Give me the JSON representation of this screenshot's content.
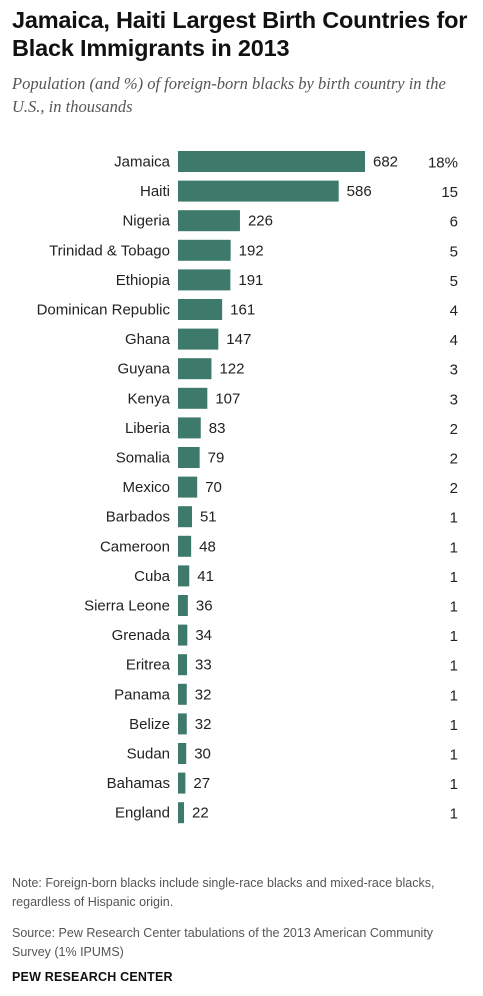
{
  "header": {
    "title": "Jamaica, Haiti Largest Birth Countries for Black Immigrants in 2013",
    "subtitle": "Population (and %) of foreign-born blacks by birth country in the U.S., in thousands"
  },
  "chart_data": {
    "type": "bar",
    "orientation": "horizontal",
    "categories": [
      "Jamaica",
      "Haiti",
      "Nigeria",
      "Trinidad & Tobago",
      "Ethiopia",
      "Dominican Republic",
      "Ghana",
      "Guyana",
      "Kenya",
      "Liberia",
      "Somalia",
      "Mexico",
      "Barbados",
      "Cameroon",
      "Cuba",
      "Sierra Leone",
      "Grenada",
      "Eritrea",
      "Panama",
      "Belize",
      "Sudan",
      "Bahamas",
      "England"
    ],
    "values": [
      682,
      586,
      226,
      192,
      191,
      161,
      147,
      122,
      107,
      83,
      79,
      70,
      51,
      48,
      41,
      36,
      34,
      33,
      32,
      32,
      30,
      27,
      22
    ],
    "percent_labels": [
      "18%",
      "15",
      "6",
      "5",
      "5",
      "4",
      "4",
      "3",
      "3",
      "2",
      "2",
      "2",
      "1",
      "1",
      "1",
      "1",
      "1",
      "1",
      "1",
      "1",
      "1",
      "1",
      "1"
    ],
    "bar_color": "#3e7a6b",
    "grid": false,
    "legend": "none"
  },
  "footer": {
    "note": "Note: Foreign-born blacks include single-race blacks and mixed-race blacks, regardless of Hispanic origin.",
    "source": "Source: Pew Research Center tabulations of the 2013 American Community Survey (1% IPUMS)",
    "brand": "PEW RESEARCH CENTER"
  }
}
